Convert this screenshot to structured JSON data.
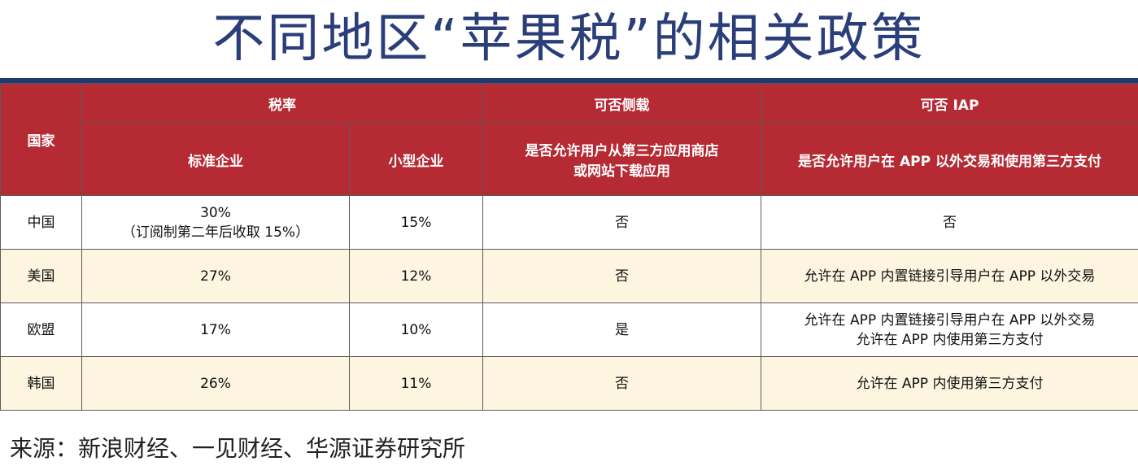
{
  "title": "不同地区“苹果税”的相关政策",
  "headers": {
    "country": "国家",
    "tax_rate": "税率",
    "standard": "标准企业",
    "small": "小型企业",
    "sideload": "可否侧载",
    "sideload_desc_1": "是否允许用户从第三方应用商店",
    "sideload_desc_2": "或网站下载应用",
    "iap": "可否 IAP",
    "iap_desc": "是否允许用户在 APP 以外交易和使用第三方支付"
  },
  "rows": [
    {
      "country": "中国",
      "standard_1": "30%",
      "standard_2": "（订阅制第二年后收取 15%）",
      "small": "15%",
      "sideload": "否",
      "iap_1": "否",
      "iap_2": ""
    },
    {
      "country": "美国",
      "standard_1": "27%",
      "standard_2": "",
      "small": "12%",
      "sideload": "否",
      "iap_1": "允许在 APP 内置链接引导用户在 APP 以外交易",
      "iap_2": ""
    },
    {
      "country": "欧盟",
      "standard_1": "17%",
      "standard_2": "",
      "small": "10%",
      "sideload": "是",
      "iap_1": "允许在 APP 内置链接引导用户在 APP 以外交易",
      "iap_2": "允许在 APP 内使用第三方支付"
    },
    {
      "country": "韩国",
      "standard_1": "26%",
      "standard_2": "",
      "small": "11%",
      "sideload": "否",
      "iap_1": "允许在 APP 内使用第三方支付",
      "iap_2": ""
    }
  ],
  "source": "来源：新浪财经、一见财经、华源证券研究所"
}
